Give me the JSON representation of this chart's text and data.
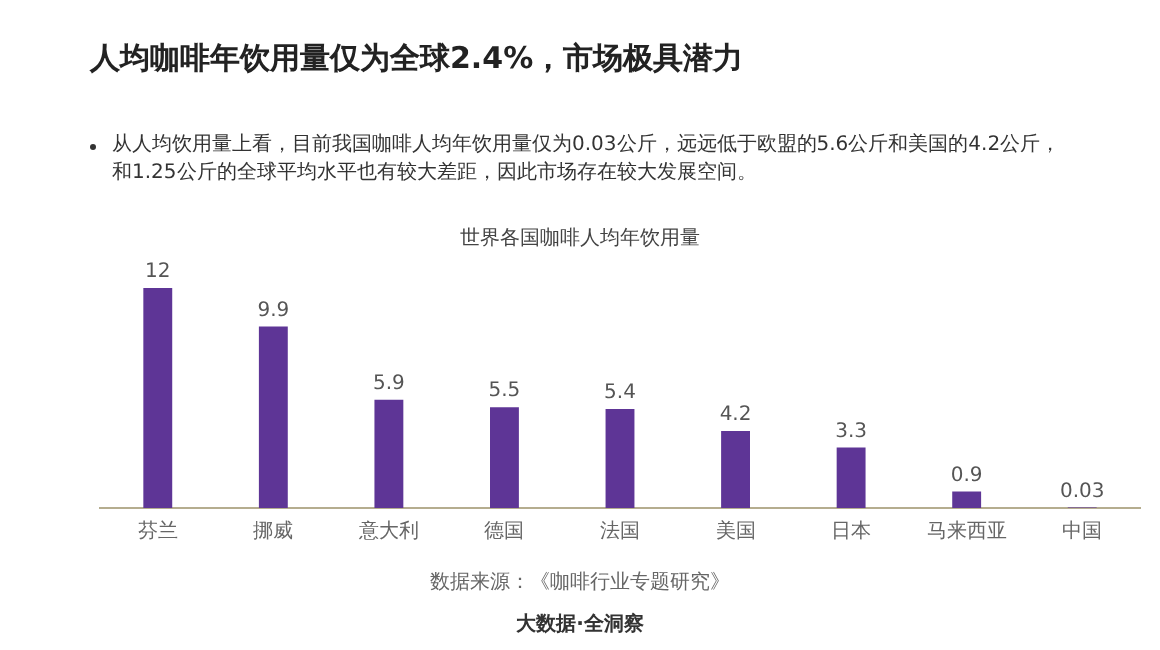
{
  "chart_data": {
    "type": "bar",
    "title": "人均咖啡年饮用量仅为全球2.4%，市场极具潜力",
    "subtitle": "从人均饮用量上看，目前我国咖啡人均年饮用量仅为0.03公斤，远远低于欧盟的5.6公斤和美国的4.2公斤，和1.25公斤的全球平均水平也有较大差距，因此市场存在较大发展空间。",
    "categories": [
      "芬兰",
      "挪威",
      "意大利",
      "德国",
      "法国",
      "美国",
      "日本",
      "马来西亚",
      "中国"
    ],
    "values": [
      12,
      9.9,
      5.9,
      5.5,
      5.4,
      4.2,
      3.3,
      0.9,
      0.03
    ],
    "color": "#5e3596",
    "tick_labels": "x",
    "data_labels": true,
    "grid": false,
    "legend": false,
    "annotations": [
      "世界各国咖啡人均年饮用量",
      "数据来源：《咖啡行业专题研究》",
      "大数据·全洞察"
    ]
  }
}
